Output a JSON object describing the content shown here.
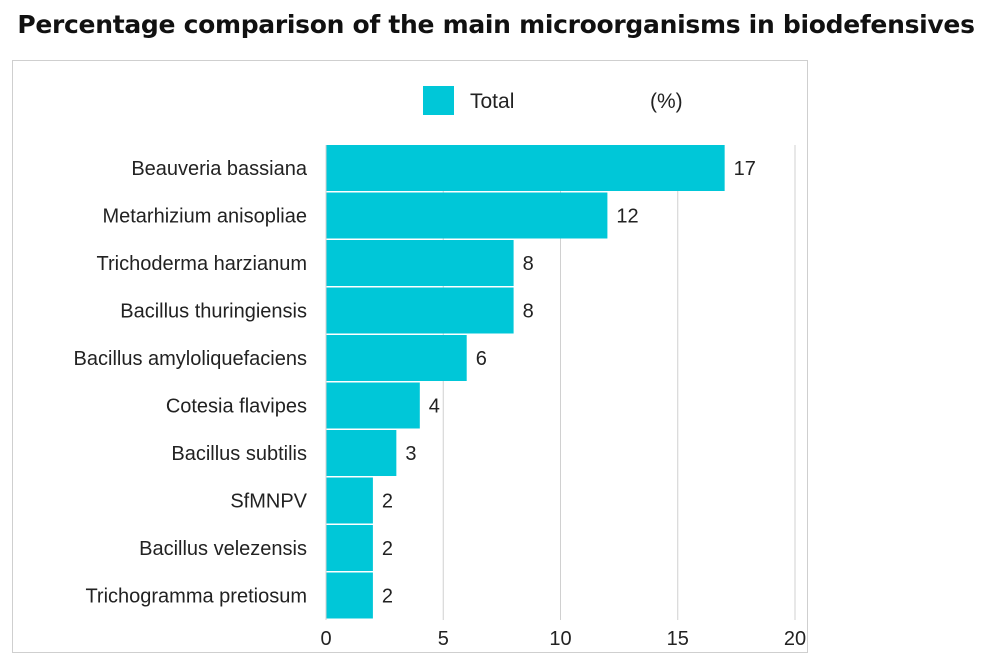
{
  "chart_data": {
    "type": "bar",
    "orientation": "horizontal",
    "title": "Percentage comparison of the main microorganisms in biodefensives",
    "categories": [
      "Beauveria bassiana",
      "Metarhizium anisopliae",
      "Trichoderma harzianum",
      "Bacillus thuringiensis",
      "Bacillus amyloliquefaciens",
      "Cotesia flavipes",
      "Bacillus subtilis",
      "SfMNPV",
      "Bacillus velezensis",
      "Trichogramma pretiosum"
    ],
    "series": [
      {
        "name": "Total",
        "values": [
          17,
          12,
          8,
          8,
          6,
          4,
          3,
          2,
          2,
          2
        ],
        "color": "#00c7d8"
      }
    ],
    "value_labels": [
      "17",
      "12",
      "8",
      "8",
      "6",
      "4",
      "3",
      "2",
      "2",
      "2"
    ],
    "legend": {
      "entries": [
        "Total"
      ],
      "unit_label": "(%)",
      "position": "top"
    },
    "xlim": [
      0,
      20
    ],
    "xticks": [
      0,
      5,
      10,
      15,
      20
    ],
    "xtick_labels": [
      "0",
      "5",
      "10",
      "15",
      "20"
    ],
    "grid": "vertical",
    "colors": {
      "bar": "#00c7d8",
      "grid": "#d0d0d0",
      "frame": "#cfcfcf",
      "text": "#222222"
    }
  }
}
